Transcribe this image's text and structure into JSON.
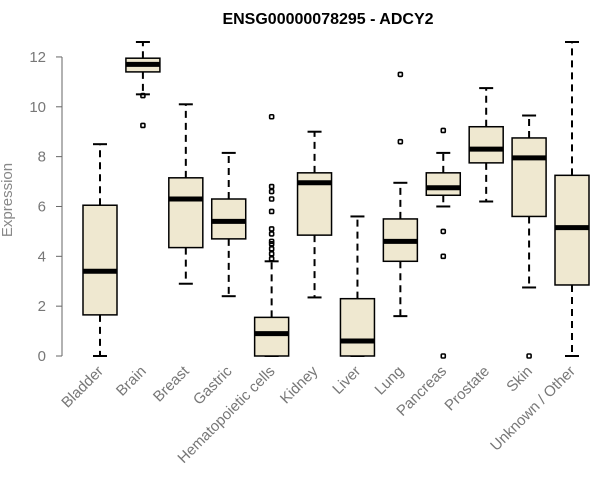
{
  "chart_data": {
    "type": "boxplot",
    "title": "ENSG00000078295 - ADCY2",
    "xlabel": "",
    "ylabel": "Expression",
    "ylim": [
      0,
      12.6
    ],
    "yticks": [
      0,
      2,
      4,
      6,
      8,
      10,
      12
    ],
    "box_fill": "#efe8d0",
    "categories": [
      "Bladder",
      "Brain",
      "Breast",
      "Gastric",
      "Hematopoietic cells",
      "Kidney",
      "Liver",
      "Lung",
      "Pancreas",
      "Prostate",
      "Skin",
      "Unknown / Other"
    ],
    "boxes": [
      {
        "name": "Bladder",
        "min": 0,
        "q1": 1.65,
        "median": 3.4,
        "q3": 6.05,
        "max": 8.5,
        "outliers": []
      },
      {
        "name": "Brain",
        "min": 10.5,
        "q1": 11.4,
        "median": 11.7,
        "q3": 11.95,
        "max": 12.6,
        "outliers": [
          10.45,
          9.25
        ]
      },
      {
        "name": "Breast",
        "min": 2.9,
        "q1": 4.35,
        "median": 6.3,
        "q3": 7.15,
        "max": 10.1,
        "outliers": []
      },
      {
        "name": "Gastric",
        "min": 2.4,
        "q1": 4.7,
        "median": 5.4,
        "q3": 6.3,
        "max": 8.15,
        "outliers": []
      },
      {
        "name": "Hematopoietic cells",
        "min": 0,
        "q1": 0,
        "median": 0.9,
        "q3": 1.55,
        "max": 3.8,
        "outliers": [
          3.9,
          4.1,
          4.3,
          4.5,
          4.6,
          4.9,
          5.1,
          5.8,
          6.3,
          6.6,
          6.8,
          9.6
        ]
      },
      {
        "name": "Kidney",
        "min": 2.35,
        "q1": 4.85,
        "median": 6.95,
        "q3": 7.35,
        "max": 9.0,
        "outliers": []
      },
      {
        "name": "Liver",
        "min": 0,
        "q1": 0,
        "median": 0.6,
        "q3": 2.3,
        "max": 5.6,
        "outliers": []
      },
      {
        "name": "Lung",
        "min": 1.6,
        "q1": 3.8,
        "median": 4.6,
        "q3": 5.5,
        "max": 6.95,
        "outliers": [
          8.6,
          11.3
        ]
      },
      {
        "name": "Pancreas",
        "min": 6.0,
        "q1": 6.45,
        "median": 6.75,
        "q3": 7.35,
        "max": 8.15,
        "outliers": [
          0,
          4.0,
          5.0,
          9.05
        ]
      },
      {
        "name": "Prostate",
        "min": 6.2,
        "q1": 7.75,
        "median": 8.3,
        "q3": 9.2,
        "max": 10.75,
        "outliers": []
      },
      {
        "name": "Skin",
        "min": 2.75,
        "q1": 5.6,
        "median": 7.95,
        "q3": 8.75,
        "max": 9.65,
        "outliers": [
          0
        ]
      },
      {
        "name": "Unknown / Other",
        "min": 0,
        "q1": 2.85,
        "median": 5.15,
        "q3": 7.25,
        "max": 12.6,
        "outliers": []
      }
    ]
  }
}
